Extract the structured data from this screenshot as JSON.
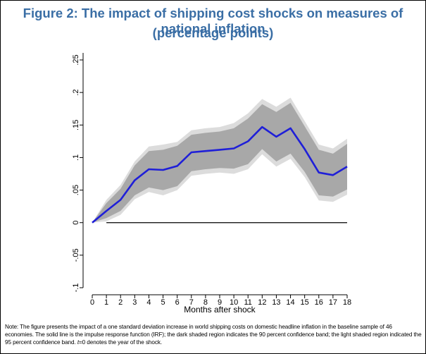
{
  "title": {
    "line1": "Figure 2: The impact of shipping cost shocks on measures of national inflation",
    "line2": "(percentage points)"
  },
  "note": {
    "part1": "Note: The figure presents the impact of a one standard deviation increase in world shipping costs on domestic headline inflation in the baseline sample of 46 economies. The solid line is the impulse response function (IRF); the dark shaded region indicates the 90 percent confidence band; the light shaded region indicated the 95 percent confidence band. ",
    "italic": "t",
    "part2": "=0 denotes the year of the shock."
  },
  "colors": {
    "title": "#3a6ea5",
    "irf_line": "#1f1fd8",
    "band_90": "#a8a8a8",
    "band_95": "#dcdcdc",
    "zero_line": "#000000"
  },
  "chart_data": {
    "type": "line",
    "xlabel": "Months after shock",
    "ylabel": "",
    "x": [
      0,
      1,
      2,
      3,
      4,
      5,
      6,
      7,
      8,
      9,
      10,
      11,
      12,
      13,
      14,
      15,
      16,
      17,
      18
    ],
    "xticks": [
      "0",
      "1",
      "2",
      "3",
      "4",
      "5",
      "6",
      "7",
      "8",
      "9",
      "10",
      "11",
      "12",
      "13",
      "14",
      "15",
      "16",
      "17",
      "18"
    ],
    "yticks": [
      -0.1,
      -0.05,
      0,
      0.05,
      0.1,
      0.15,
      0.2,
      0.25
    ],
    "ytick_labels": [
      "-.1",
      "-.05",
      "0",
      ".05",
      ".1",
      ".15",
      ".2",
      ".25"
    ],
    "ylim": [
      -0.1,
      0.25
    ],
    "xlim": [
      0,
      18
    ],
    "zero_line_from": 1,
    "series": [
      {
        "role": "irf",
        "values": [
          0,
          0.018,
          0.035,
          0.065,
          0.082,
          0.081,
          0.087,
          0.108,
          0.11,
          0.112,
          0.114,
          0.125,
          0.147,
          0.132,
          0.145,
          0.113,
          0.077,
          0.073,
          0.086
        ]
      },
      {
        "role": "band90_upper",
        "values": [
          0,
          0.03,
          0.052,
          0.088,
          0.11,
          0.112,
          0.118,
          0.135,
          0.138,
          0.14,
          0.145,
          0.16,
          0.182,
          0.17,
          0.184,
          0.148,
          0.112,
          0.106,
          0.121
        ]
      },
      {
        "role": "band90_lower",
        "values": [
          0,
          0.007,
          0.018,
          0.042,
          0.054,
          0.05,
          0.056,
          0.079,
          0.082,
          0.084,
          0.083,
          0.09,
          0.113,
          0.094,
          0.106,
          0.078,
          0.042,
          0.04,
          0.051
        ]
      },
      {
        "role": "band95_upper",
        "values": [
          0,
          0.035,
          0.058,
          0.094,
          0.117,
          0.12,
          0.124,
          0.142,
          0.145,
          0.147,
          0.153,
          0.168,
          0.19,
          0.178,
          0.192,
          0.156,
          0.12,
          0.114,
          0.129
        ]
      },
      {
        "role": "band95_lower",
        "values": [
          0,
          0.002,
          0.012,
          0.036,
          0.047,
          0.042,
          0.05,
          0.072,
          0.075,
          0.077,
          0.075,
          0.082,
          0.105,
          0.086,
          0.098,
          0.07,
          0.034,
          0.032,
          0.043
        ]
      }
    ]
  }
}
